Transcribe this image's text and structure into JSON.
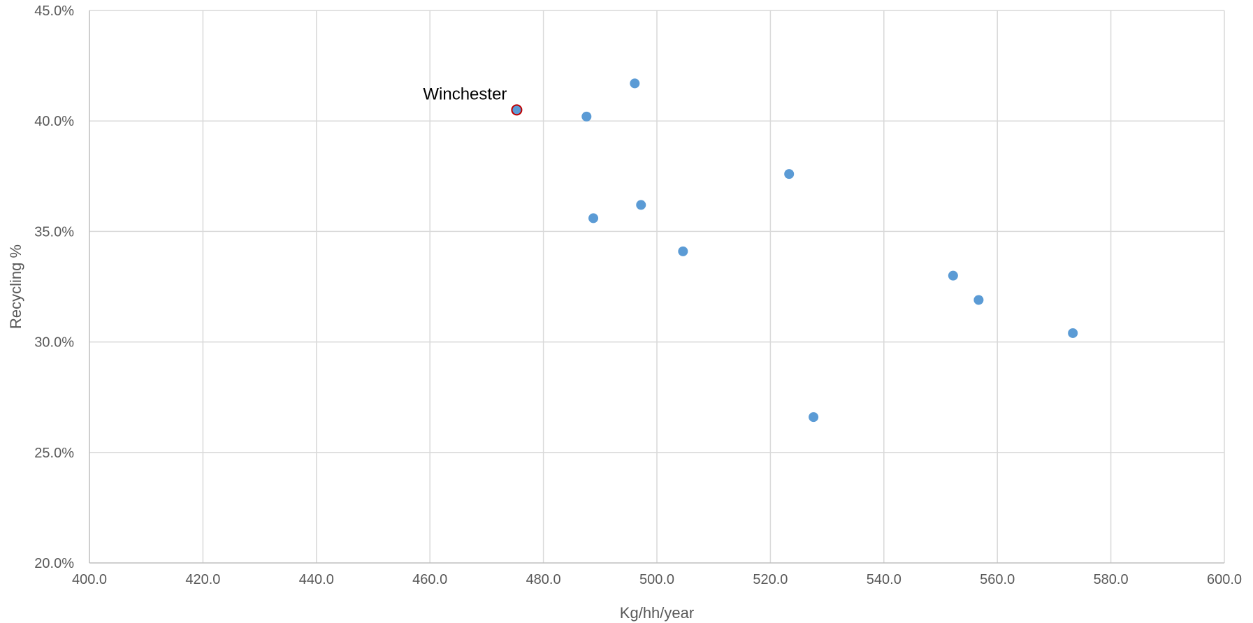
{
  "chart_data": {
    "type": "scatter",
    "xlabel": "Kg/hh/year",
    "ylabel": "Recycling %",
    "xlim": [
      400,
      600
    ],
    "ylim": [
      0.2,
      0.45
    ],
    "x_ticks": [
      "400.0",
      "420.0",
      "440.0",
      "460.0",
      "480.0",
      "500.0",
      "520.0",
      "540.0",
      "560.0",
      "580.0",
      "600.0"
    ],
    "y_ticks": [
      "20.0%",
      "25.0%",
      "30.0%",
      "35.0%",
      "40.0%",
      "45.0%"
    ],
    "grid": true,
    "marker_color": "#5b9bd5",
    "highlight_outline_color": "#c00000",
    "points": [
      {
        "x": 475.3,
        "y": 0.405,
        "label": "Winchester",
        "highlight": true
      },
      {
        "x": 487.6,
        "y": 0.402
      },
      {
        "x": 496.1,
        "y": 0.417
      },
      {
        "x": 488.8,
        "y": 0.356
      },
      {
        "x": 497.2,
        "y": 0.362
      },
      {
        "x": 504.6,
        "y": 0.341
      },
      {
        "x": 523.3,
        "y": 0.376
      },
      {
        "x": 527.6,
        "y": 0.266
      },
      {
        "x": 552.2,
        "y": 0.33
      },
      {
        "x": 556.7,
        "y": 0.319
      },
      {
        "x": 573.3,
        "y": 0.304
      }
    ]
  }
}
